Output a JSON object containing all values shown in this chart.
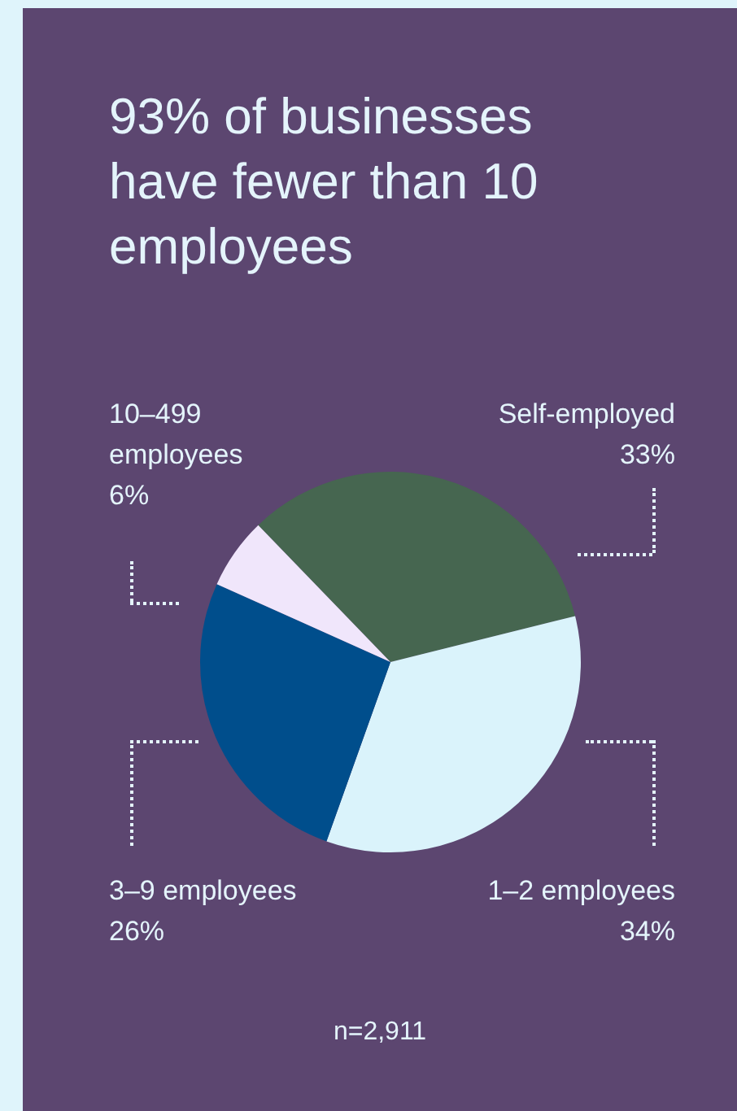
{
  "chart_data": {
    "type": "pie",
    "title": "93% of businesses have fewer than 10 employees",
    "categories": [
      "Self-employed",
      "1–2 employees",
      "3–9 employees",
      "10–499 employees"
    ],
    "values": [
      33,
      34,
      26,
      6
    ],
    "value_labels": [
      "33%",
      "34%",
      "26%",
      "6%"
    ],
    "colors": [
      "#466650",
      "#daf3fb",
      "#004e8c",
      "#f0e6fb"
    ],
    "legend": false,
    "annotations": [
      "n=2,911"
    ]
  }
}
